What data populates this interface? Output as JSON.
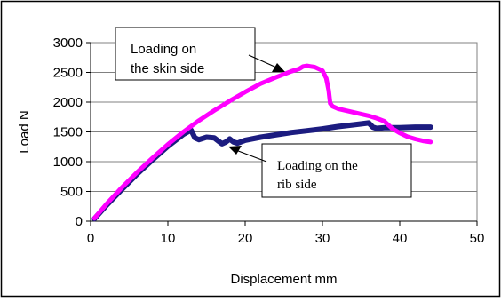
{
  "chart_data": {
    "type": "line",
    "xlabel": "Displacement mm",
    "ylabel": "Load N",
    "xlim": [
      0,
      50
    ],
    "ylim": [
      0,
      3000
    ],
    "x_ticks": [
      "0",
      "10",
      "20",
      "30",
      "40",
      "50"
    ],
    "y_ticks": [
      "0",
      "500",
      "1000",
      "1500",
      "2000",
      "2500",
      "3000"
    ],
    "grid": "horizontal",
    "legend": "none",
    "series": [
      {
        "color": "#ff00ff",
        "x": [
          0.5,
          2,
          4,
          6,
          8,
          10,
          12,
          14,
          16,
          18,
          20,
          22,
          24,
          26,
          27,
          27.5,
          28,
          28.5,
          29,
          30,
          30.5,
          30.8,
          31,
          31.3,
          32,
          33,
          34,
          35,
          36,
          37,
          38,
          39,
          40,
          41,
          42,
          43,
          44
        ],
        "y": [
          50,
          280,
          560,
          820,
          1060,
          1290,
          1500,
          1690,
          1860,
          2020,
          2170,
          2310,
          2420,
          2520,
          2560,
          2600,
          2610,
          2600,
          2590,
          2530,
          2400,
          2200,
          1980,
          1930,
          1890,
          1860,
          1830,
          1800,
          1770,
          1730,
          1680,
          1560,
          1480,
          1420,
          1380,
          1350,
          1330
        ]
      },
      {
        "color": "#1c1c80",
        "x": [
          0.5,
          2,
          4,
          6,
          8,
          10,
          12,
          13,
          13.5,
          14,
          15,
          16,
          16.5,
          17,
          17.5,
          18,
          18.5,
          19,
          20,
          22,
          24,
          26,
          28,
          30,
          32,
          34,
          36,
          36.5,
          37,
          38,
          40,
          42,
          44
        ],
        "y": [
          40,
          260,
          530,
          790,
          1030,
          1260,
          1460,
          1530,
          1400,
          1370,
          1410,
          1400,
          1350,
          1300,
          1330,
          1380,
          1330,
          1310,
          1360,
          1410,
          1450,
          1490,
          1520,
          1550,
          1590,
          1620,
          1650,
          1580,
          1560,
          1570,
          1570,
          1580,
          1580
        ]
      }
    ],
    "annotations": [
      {
        "lines": [
          "Loading on",
          "the skin side"
        ],
        "target": "magenta"
      },
      {
        "lines": [
          "Loading on the",
          "rib side"
        ],
        "target": "blue"
      }
    ]
  }
}
